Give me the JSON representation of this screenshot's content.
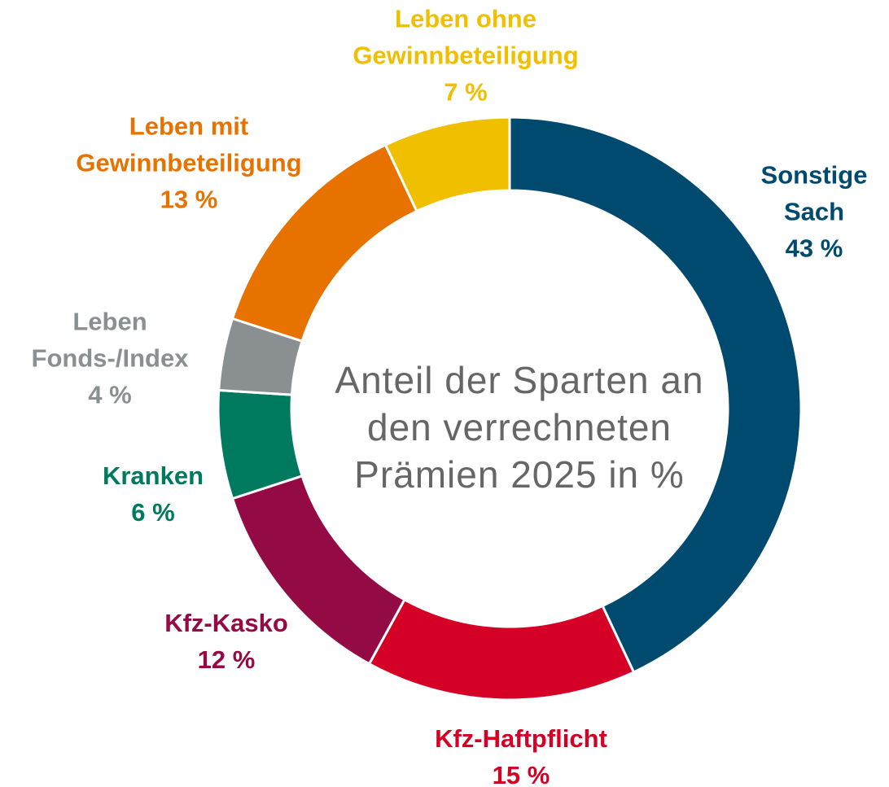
{
  "chart_data": {
    "type": "donut",
    "title": "Anteil der Sparten an den verrechneten Prämien 2025 in %",
    "categories": [
      "Sonstige Sach",
      "Kfz-Haftpflicht",
      "Kfz-Kasko",
      "Kranken",
      "Leben Fonds-/Index",
      "Leben mit Gewinnbeteiligung",
      "Leben ohne Gewinnbeteiligung"
    ],
    "values": [
      43,
      15,
      12,
      6,
      4,
      13,
      7
    ],
    "value_labels": [
      "43 %",
      "15 %",
      "12 %",
      "6 %",
      "4 %",
      "13 %",
      "7 %"
    ],
    "colors": [
      "#004a6f",
      "#d50025",
      "#930a45",
      "#007a5e",
      "#8a8f91",
      "#e87200",
      "#f0bf00"
    ]
  }
}
